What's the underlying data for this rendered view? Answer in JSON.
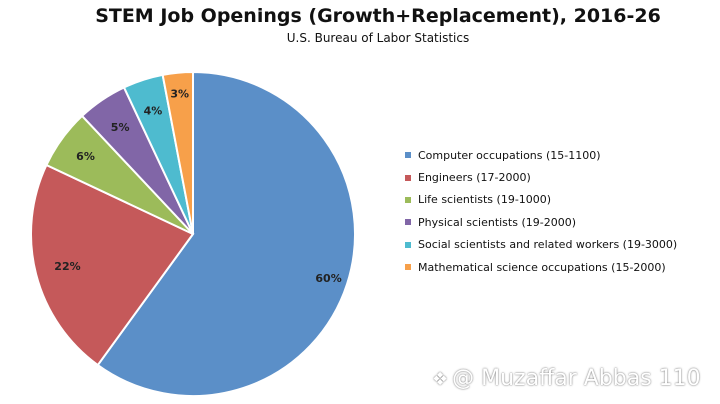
{
  "chart_data": {
    "type": "pie",
    "title": "STEM Job Openings (Growth+Replacement), 2016-26",
    "subtitle": "U.S. Bureau of Labor Statistics",
    "legend_position": "right",
    "slices": [
      {
        "label": "Computer occupations (15-1100)",
        "value": 60,
        "data_label": "60%",
        "color": "#5b8fc8"
      },
      {
        "label": "Engineers (17-2000)",
        "value": 22,
        "data_label": "22%",
        "color": "#c5595a"
      },
      {
        "label": "Life scientists (19-1000)",
        "value": 6,
        "data_label": "6%",
        "color": "#9cbb5a"
      },
      {
        "label": "Physical scientists (19-2000)",
        "value": 5,
        "data_label": "5%",
        "color": "#8166a7"
      },
      {
        "label": "Social scientists and related workers (19-3000)",
        "value": 4,
        "data_label": "4%",
        "color": "#4ebbcf"
      },
      {
        "label": "Mathematical science occupations (15-2000)",
        "value": 3,
        "data_label": "3%",
        "color": "#f7a04a"
      }
    ]
  },
  "watermark": {
    "text": "@ Muzaffar Abbas 110"
  }
}
